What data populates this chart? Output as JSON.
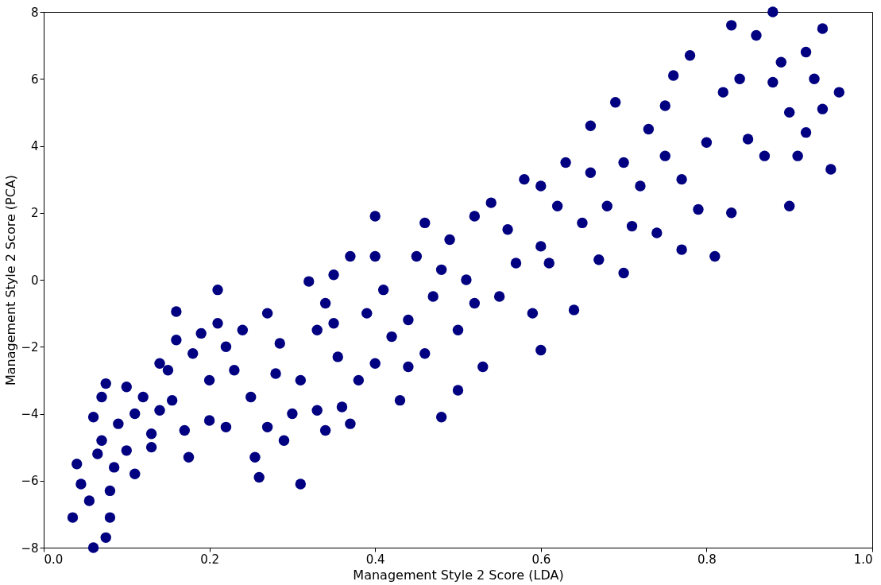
{
  "chart_data": {
    "type": "scatter",
    "xlabel": "Management Style 2 Score (LDA)",
    "ylabel": "Management Style 2 Score (PCA)",
    "xlim": [
      0,
      1
    ],
    "ylim": [
      -8,
      8
    ],
    "xticks": [
      {
        "value": 0,
        "label": "0.0"
      },
      0.2,
      0.4,
      0.6,
      0.8,
      {
        "value": 1,
        "label": "1.0"
      }
    ],
    "yticks": [
      -8,
      -6,
      -4,
      -2,
      0,
      2,
      4,
      6,
      8
    ],
    "grid": false,
    "marker": "circle",
    "series": [
      {
        "color": "#000080",
        "x": [
          0.035,
          0.04,
          0.045,
          0.055,
          0.06,
          0.065,
          0.07,
          0.075,
          0.08,
          0.08,
          0.085,
          0.06,
          0.07,
          0.075,
          0.09,
          0.1,
          0.1,
          0.11,
          0.11,
          0.12,
          0.13,
          0.14,
          0.14,
          0.15,
          0.155,
          0.16,
          0.16,
          0.17,
          0.175,
          0.18,
          0.19,
          0.2,
          0.2,
          0.21,
          0.21,
          0.22,
          0.23,
          0.24,
          0.25,
          0.255,
          0.26,
          0.27,
          0.27,
          0.285,
          0.29,
          0.3,
          0.31,
          0.31,
          0.32,
          0.33,
          0.33,
          0.34,
          0.34,
          0.35,
          0.355,
          0.36,
          0.37,
          0.37,
          0.38,
          0.39,
          0.4,
          0.4,
          0.4,
          0.41,
          0.42,
          0.43,
          0.44,
          0.45,
          0.46,
          0.46,
          0.47,
          0.48,
          0.48,
          0.49,
          0.5,
          0.5,
          0.51,
          0.52,
          0.53,
          0.54,
          0.55,
          0.56,
          0.57,
          0.58,
          0.59,
          0.6,
          0.6,
          0.61,
          0.6,
          0.62,
          0.63,
          0.64,
          0.65,
          0.66,
          0.66,
          0.67,
          0.68,
          0.69,
          0.7,
          0.7,
          0.71,
          0.72,
          0.73,
          0.74,
          0.75,
          0.75,
          0.76,
          0.77,
          0.77,
          0.78,
          0.79,
          0.8,
          0.81,
          0.82,
          0.83,
          0.83,
          0.84,
          0.85,
          0.86,
          0.87,
          0.88,
          0.88,
          0.89,
          0.9,
          0.9,
          0.91,
          0.92,
          0.92,
          0.93,
          0.94,
          0.94,
          0.95,
          0.96,
          0.13,
          0.22,
          0.28,
          0.35,
          0.44,
          0.52
        ],
        "values": [
          -7.1,
          -5.5,
          -6.1,
          -6.6,
          -8.0,
          -5.2,
          -4.8,
          -7.7,
          -7.1,
          -6.3,
          -5.6,
          -4.1,
          -3.5,
          -3.1,
          -4.3,
          -3.2,
          -5.1,
          -5.8,
          -4.0,
          -3.5,
          -4.6,
          -3.9,
          -2.5,
          -2.7,
          -3.6,
          -1.8,
          -0.95,
          -4.5,
          -5.3,
          -2.2,
          -1.6,
          -3.0,
          -4.2,
          -0.3,
          -1.3,
          -4.4,
          -2.7,
          -1.5,
          -3.5,
          -5.3,
          -5.9,
          -4.4,
          -1.0,
          -1.9,
          -4.8,
          -4.0,
          -6.1,
          -3.0,
          -0.05,
          -1.5,
          -3.9,
          -0.7,
          -4.5,
          0.15,
          -2.3,
          -3.8,
          0.7,
          -4.3,
          -3.0,
          -1.0,
          1.9,
          0.7,
          -2.5,
          -0.3,
          -1.7,
          -3.6,
          -2.6,
          0.7,
          1.7,
          -2.2,
          -0.5,
          -4.1,
          0.3,
          1.2,
          -3.3,
          -1.5,
          0.0,
          1.9,
          -2.6,
          2.3,
          -0.5,
          1.5,
          0.5,
          3.0,
          -1.0,
          1.0,
          2.8,
          0.5,
          -2.1,
          2.2,
          3.5,
          -0.9,
          1.7,
          4.6,
          3.2,
          0.6,
          2.2,
          5.3,
          0.2,
          3.5,
          1.6,
          2.8,
          4.5,
          1.4,
          3.7,
          5.2,
          6.1,
          0.9,
          3.0,
          6.7,
          2.1,
          4.1,
          0.7,
          5.6,
          7.6,
          2.0,
          6.0,
          4.2,
          7.3,
          3.7,
          8.0,
          5.9,
          6.5,
          2.2,
          5.0,
          3.7,
          6.8,
          4.4,
          6.0,
          7.5,
          5.1,
          3.3,
          5.6,
          -5.0,
          -2.0,
          -2.8,
          -1.3,
          -1.2,
          -0.7
        ]
      }
    ]
  }
}
